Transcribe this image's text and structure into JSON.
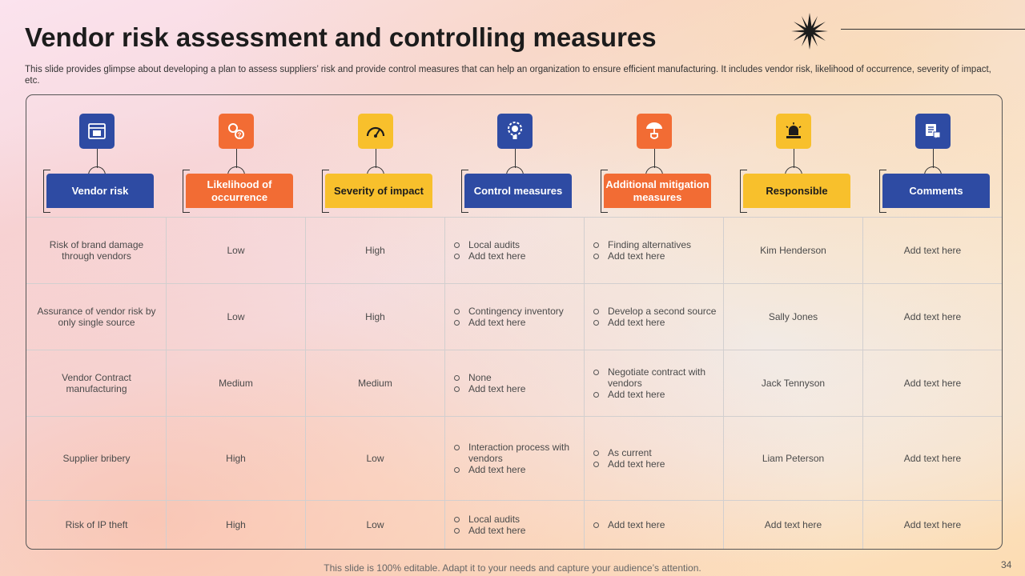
{
  "slide": {
    "title": "Vendor risk assessment and controlling measures",
    "subtitle": "This slide provides glimpse about developing a plan to assess suppliers’ risk and provide control measures that can help an organization to ensure efficient manufacturing. It includes vendor risk, likelihood of occurrence, severity of impact, etc.",
    "footer": "This slide is 100% editable. Adapt it to your needs and capture your audience’s attention.",
    "page_number": "34"
  },
  "colors": {
    "blue": "#2e4ba3",
    "orange": "#f26c34",
    "yellow": "#f8c02c"
  },
  "columns": [
    {
      "label": "Vendor risk",
      "icon": "browser-window-icon",
      "color": "blue"
    },
    {
      "label": "Likelihood of occurrence",
      "icon": "gears-question-icon",
      "color": "orange"
    },
    {
      "label": "Severity of impact",
      "icon": "speedometer-icon",
      "color": "yellow"
    },
    {
      "label": "Control measures",
      "icon": "gear-bulb-icon",
      "color": "blue"
    },
    {
      "label": "Additional mitigation measures",
      "icon": "umbrella-shield-icon",
      "color": "orange"
    },
    {
      "label": "Responsible",
      "icon": "alarm-siren-icon",
      "color": "yellow"
    },
    {
      "label": "Comments",
      "icon": "chat-document-icon",
      "color": "blue"
    }
  ],
  "rows": [
    {
      "risk": "Risk of brand damage through vendors",
      "likelihood": "Low",
      "severity": "High",
      "control": [
        "Local audits",
        "Add text here"
      ],
      "mitigation": [
        "Finding alternatives",
        "Add text here"
      ],
      "responsible": "Kim Henderson",
      "comments": "Add text here"
    },
    {
      "risk": "Assurance of vendor risk by only single source",
      "likelihood": "Low",
      "severity": "High",
      "control": [
        "Contingency inventory",
        "Add text here"
      ],
      "mitigation": [
        "Develop a second source",
        "Add text here"
      ],
      "responsible": "Sally Jones",
      "comments": "Add text here"
    },
    {
      "risk": "Vendor Contract manufacturing",
      "likelihood": "Medium",
      "severity": "Medium",
      "control": [
        "None",
        "Add text here"
      ],
      "mitigation": [
        "Negotiate contract with vendors",
        "Add text here"
      ],
      "responsible": "Jack Tennyson",
      "comments": "Add text here"
    },
    {
      "risk": "Supplier bribery",
      "likelihood": "High",
      "severity": "Low",
      "control": [
        "Interaction process with vendors",
        "Add text here"
      ],
      "mitigation": [
        "As current",
        "Add text here"
      ],
      "responsible": "Liam Peterson",
      "comments": "Add text here"
    },
    {
      "risk": "Risk of IP theft",
      "likelihood": "High",
      "severity": "Low",
      "control": [
        "Local audits",
        "Add text here"
      ],
      "mitigation": [
        "Add text here"
      ],
      "responsible": "Add text here",
      "comments": "Add text here"
    }
  ]
}
